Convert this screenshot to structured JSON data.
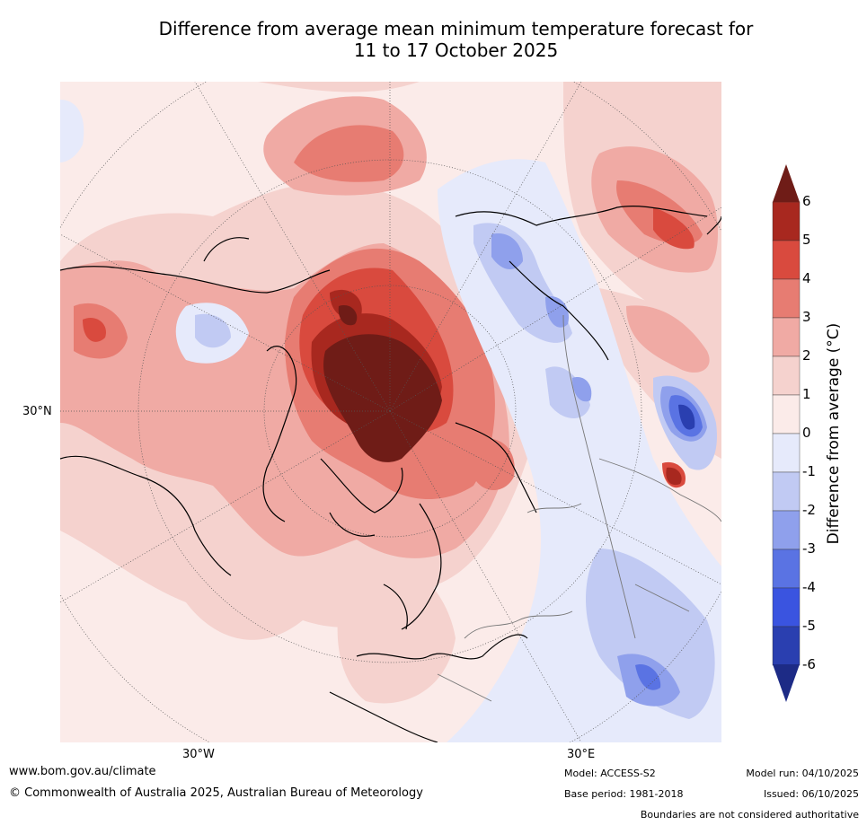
{
  "title": {
    "line1": "Difference from average mean minimum temperature forecast for",
    "line2": "11 to 17 October 2025"
  },
  "map": {
    "lat_label": "30°N",
    "lon_labels": [
      "30°W",
      "30°E"
    ]
  },
  "colorbar": {
    "label": "Difference from average (°C)",
    "ticks": [
      "6",
      "5",
      "4",
      "3",
      "2",
      "1",
      "0",
      "-1",
      "-2",
      "-3",
      "-4",
      "-5",
      "-6"
    ],
    "colors": {
      "above6": "#6f1c17",
      "5to6": "#a8281f",
      "4to5": "#d94a3e",
      "3to4": "#e77c72",
      "2to3": "#f0aaa4",
      "1to2": "#f5d2ce",
      "0to1": "#fbebe9",
      "-1to0": "#e6eafb",
      "-2to-1": "#c1caf3",
      "-3to-2": "#8fa0ec",
      "-4to-3": "#5a73e3",
      "-5to-4": "#3a54e0",
      "-6to-5": "#2a3fb0",
      "below-6": "#1d2b86"
    }
  },
  "footer": {
    "website": "www.bom.gov.au/climate",
    "copyright": "© Commonwealth of Australia 2025, Australian Bureau of Meteorology",
    "model": "Model: ACCESS-S2",
    "base_period": "Base period: 1981-2018",
    "model_run": "Model run: 04/10/2025",
    "issued": "Issued: 06/10/2025",
    "boundaries_note": "Boundaries are not considered authoritative"
  }
}
